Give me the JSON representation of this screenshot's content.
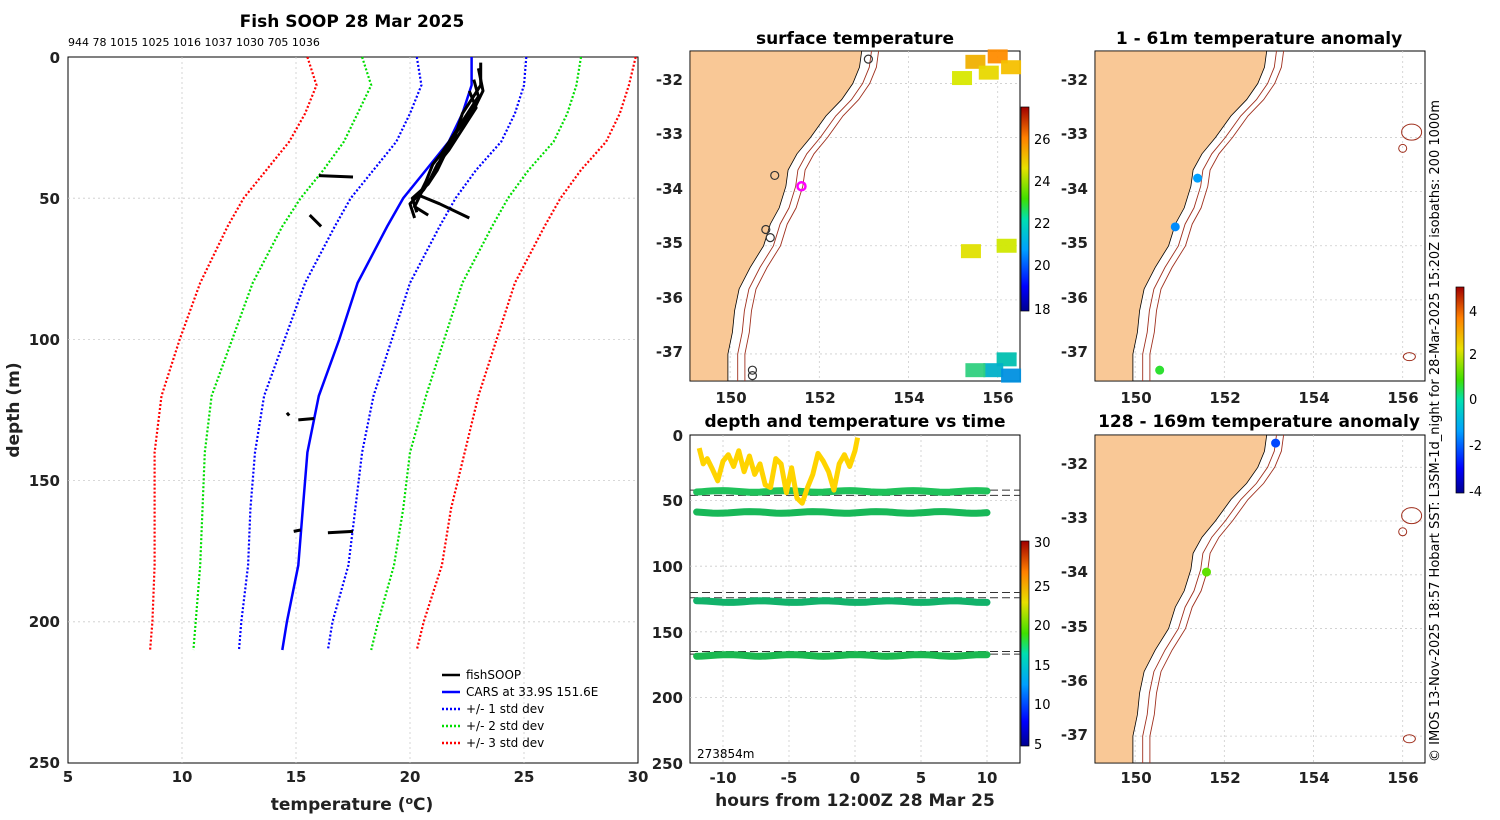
{
  "colors": {
    "land": "#F9C896",
    "isobath": "#A0301E",
    "cars": "#0000FF",
    "fish": "#000000",
    "std1": "#0000FF",
    "std2": "#00DD00",
    "std3": "#FF0000",
    "yellow": "#FFD800",
    "green": "#22BB44"
  },
  "chart_data": [
    {
      "id": "profile",
      "type": "line",
      "title": "Fish SOOP 28 Mar 2025",
      "top_ids": "944 78 1015 1025 1016 1037 1030 705 1036",
      "xlabel": "temperature (",
      "xlabel_sup": "o",
      "xlabel_unit": "C)",
      "ylabel": "depth (m)",
      "xlim": [
        5,
        30
      ],
      "ylim": [
        0,
        250
      ],
      "xticks": [
        "5",
        "10",
        "15",
        "20",
        "25",
        "30"
      ],
      "yticks": [
        "0",
        "50",
        "100",
        "150",
        "200",
        "250"
      ],
      "legend": [
        "fishSOOP",
        "CARS at 33.9S 151.6E",
        "+/- 1 std dev",
        "+/- 2 std dev",
        "+/- 3 std dev"
      ],
      "depth": [
        0,
        10,
        20,
        30,
        40,
        50,
        60,
        80,
        100,
        120,
        140,
        160,
        180,
        200,
        210
      ],
      "cars": [
        22.7,
        22.7,
        22.3,
        21.7,
        20.7,
        19.7,
        19.0,
        17.7,
        16.9,
        16.0,
        15.5,
        15.3,
        15.1,
        14.6,
        14.4
      ],
      "series": [
        {
          "name": "-3 std",
          "values": [
            15.5,
            15.9,
            15.4,
            14.7,
            13.7,
            12.7,
            12.0,
            10.8,
            9.9,
            9.1,
            8.8,
            8.8,
            8.8,
            8.7,
            8.6
          ]
        },
        {
          "name": "-2 std",
          "values": [
            17.9,
            18.3,
            17.7,
            17.1,
            16.2,
            15.2,
            14.4,
            13.1,
            12.2,
            11.3,
            11.0,
            10.9,
            10.8,
            10.6,
            10.5
          ]
        },
        {
          "name": "-1 std",
          "values": [
            20.3,
            20.5,
            20.0,
            19.4,
            18.4,
            17.4,
            16.7,
            15.4,
            14.5,
            13.6,
            13.2,
            13.0,
            12.9,
            12.6,
            12.5
          ]
        },
        {
          "name": "+1 std",
          "values": [
            25.1,
            25.0,
            24.6,
            24.0,
            22.9,
            22.0,
            21.3,
            20.0,
            19.2,
            18.4,
            17.9,
            17.6,
            17.3,
            16.6,
            16.4
          ]
        },
        {
          "name": "+2 std",
          "values": [
            27.5,
            27.3,
            26.9,
            26.3,
            25.2,
            24.3,
            23.6,
            22.3,
            21.5,
            20.7,
            20.0,
            19.7,
            19.3,
            18.6,
            18.3
          ]
        },
        {
          "name": "+3 std",
          "values": [
            29.9,
            29.6,
            29.2,
            28.6,
            27.5,
            26.6,
            25.9,
            24.6,
            23.8,
            23.0,
            22.4,
            21.8,
            21.4,
            20.6,
            20.3
          ]
        }
      ],
      "fish_casts": [
        {
          "t": [
            23.1,
            23.1,
            22.7,
            22.3,
            22.1,
            21.9,
            21.5,
            21.2,
            20.8,
            20.1,
            20.3
          ],
          "d": [
            2,
            10,
            15,
            20,
            25,
            30,
            35,
            40,
            45,
            50,
            55
          ]
        },
        {
          "t": [
            23.0,
            23.2,
            22.9,
            22.5,
            22.0,
            21.6,
            21.3,
            21.0,
            20.6,
            20.0,
            20.2
          ],
          "d": [
            4,
            12,
            17,
            22,
            27,
            32,
            37,
            42,
            47,
            52,
            57
          ]
        },
        {
          "t": [
            22.8,
            23.0,
            22.6,
            22.2,
            21.8,
            21.4,
            21.0,
            20.7,
            20.4,
            21.3,
            22.6
          ],
          "d": [
            8,
            14,
            19,
            24,
            29,
            34,
            38,
            44,
            49,
            52,
            57
          ]
        },
        {
          "t": [
            22.6,
            22.9,
            22.5,
            22.1,
            21.7,
            21.2,
            20.9,
            20.5,
            20.2,
            20.8
          ],
          "d": [
            12,
            18,
            23,
            28,
            33,
            38,
            43,
            48,
            53,
            56
          ]
        },
        {
          "t": [
            16.0,
            17.5
          ],
          "d": [
            42,
            42.5
          ]
        },
        {
          "t": [
            15.6,
            16.1
          ],
          "d": [
            56,
            60
          ]
        },
        {
          "t": [
            14.6,
            14.7
          ],
          "d": [
            126,
            127
          ]
        },
        {
          "t": [
            15.1,
            15.8
          ],
          "d": [
            128.5,
            128
          ]
        },
        {
          "t": [
            14.9,
            15.2
          ],
          "d": [
            168,
            167.5
          ]
        },
        {
          "t": [
            16.4,
            17.5
          ],
          "d": [
            168.5,
            168
          ]
        }
      ]
    },
    {
      "id": "sst_map",
      "type": "heatmap",
      "title": "surface temperature",
      "xticks": [
        "150",
        "152",
        "154",
        "156"
      ],
      "yticks": [
        "-32",
        "-33",
        "-34",
        "-35",
        "-36",
        "-37"
      ],
      "xlim": [
        149.1,
        156.5
      ],
      "ylim": [
        -37.5,
        -31.4
      ],
      "colorbar_ticks": [
        "18",
        "20",
        "22",
        "24",
        "26"
      ],
      "colorbar_range": [
        18,
        27
      ],
      "observations": [
        {
          "lon": 151.6,
          "lat": -33.9,
          "ring": "magenta"
        },
        {
          "lon": 150.8,
          "lat": -34.7,
          "ring": "black"
        },
        {
          "lon": 150.9,
          "lat": -34.85,
          "ring": "black"
        },
        {
          "lon": 151.0,
          "lat": -33.7,
          "ring": "black"
        },
        {
          "lon": 153.1,
          "lat": -31.55,
          "ring": "black"
        },
        {
          "lon": 150.5,
          "lat": -37.3,
          "ring": "black"
        },
        {
          "lon": 150.5,
          "lat": -37.4,
          "ring": "black"
        }
      ]
    },
    {
      "id": "time_series",
      "type": "scatter",
      "title": "depth and temperature vs time",
      "xlabel": "hours from 12:00Z 28 Mar 25",
      "xlim": [
        -12.5,
        12.5
      ],
      "ylim": [
        0,
        250
      ],
      "xticks": [
        "-10",
        "-5",
        "0",
        "5",
        "10"
      ],
      "yticks": [
        "0",
        "50",
        "100",
        "150",
        "200",
        "250"
      ],
      "colorbar_ticks": [
        "5",
        "10",
        "15",
        "20",
        "25",
        "30"
      ],
      "colorbar_range": [
        4,
        30
      ],
      "annotation": "273854m",
      "dashed_depths": [
        42,
        46,
        120,
        124,
        165,
        167
      ],
      "bands": [
        {
          "depth": 43,
          "color": "#1FC25A"
        },
        {
          "depth": 59,
          "color": "#18B858"
        },
        {
          "depth": 127,
          "color": "#12B26A"
        },
        {
          "depth": 168,
          "color": "#1AB850"
        }
      ],
      "yellow_track": {
        "hours": [
          -11.8,
          -11.5,
          -11.2,
          -10.8,
          -10.4,
          -10.0,
          -9.6,
          -9.2,
          -8.8,
          -8.4,
          -8.0,
          -7.6,
          -7.2,
          -6.8,
          -6.4,
          -6.0,
          -5.6,
          -5.2,
          -4.8,
          -4.4,
          -4.0,
          -3.6,
          -3.2,
          -2.8,
          -2.4,
          -2.0,
          -1.6,
          -1.2,
          -0.8,
          -0.4,
          0.0,
          0.2
        ],
        "depths": [
          10,
          22,
          18,
          26,
          35,
          20,
          15,
          24,
          12,
          28,
          16,
          30,
          22,
          38,
          40,
          18,
          22,
          44,
          25,
          48,
          52,
          40,
          30,
          14,
          20,
          28,
          42,
          22,
          15,
          24,
          12,
          2
        ]
      }
    },
    {
      "id": "anom_shallow",
      "type": "scatter",
      "title": "1 - 61m temperature anomaly",
      "xticks": [
        "150",
        "152",
        "154",
        "156"
      ],
      "yticks": [
        "-32",
        "-33",
        "-34",
        "-35",
        "-36",
        "-37"
      ],
      "points": [
        {
          "lon": 151.4,
          "lat": -33.75,
          "anom": -1.3
        },
        {
          "lon": 150.9,
          "lat": -34.65,
          "anom": -1.5
        },
        {
          "lon": 150.55,
          "lat": -37.3,
          "anom": 0.7
        }
      ]
    },
    {
      "id": "anom_deep",
      "type": "scatter",
      "title": "128 - 169m temperature anomaly",
      "xticks": [
        "150",
        "152",
        "154",
        "156"
      ],
      "yticks": [
        "-32",
        "-33",
        "-34",
        "-35",
        "-36",
        "-37"
      ],
      "points": [
        {
          "lon": 153.15,
          "lat": -31.55,
          "anom": -2.2
        },
        {
          "lon": 151.6,
          "lat": -33.95,
          "anom": 1.2
        }
      ]
    }
  ],
  "anomaly_colorbar": {
    "ticks": [
      "-4",
      "-2",
      "0",
      "2",
      "4"
    ],
    "range": [
      -4,
      5
    ]
  },
  "side_note": "© IMOS 13-Nov-2025 18:57 Hobart SST: L3SM-1d_night for 28-Mar-2025 15:20Z isobaths: 200  1000m"
}
